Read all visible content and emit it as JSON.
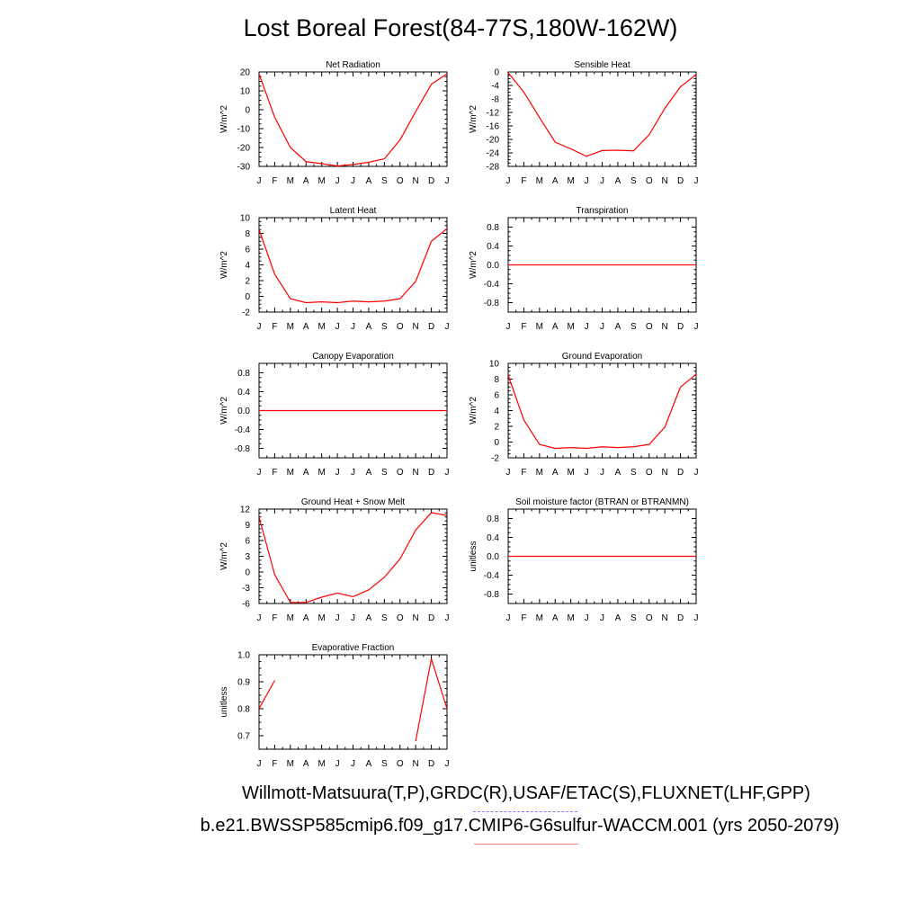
{
  "title": "Lost Boreal Forest(84-77S,180W-162W)",
  "footer": {
    "obs_line": "Willmott-Matsuura(T,P),GRDC(R),USAF/ETAC(S),FLUXNET(LHF,GPP)",
    "case_line": "b.e21.BWSSP585cmip6.f09_g17.CMIP6-G6sulfur-WACCM.001 (yrs 2050-2079)"
  },
  "colors": {
    "series": "#ff0000",
    "obs_dash": "#8080ff",
    "case_underline": "#ff8080"
  },
  "chart_data": [
    {
      "type": "line",
      "title": "Net Radiation",
      "ylabel": "W/m^2",
      "categories": [
        "J",
        "F",
        "M",
        "A",
        "M",
        "J",
        "J",
        "A",
        "S",
        "O",
        "N",
        "D",
        "J"
      ],
      "ylim": [
        -30,
        20
      ],
      "yticks": [
        -30,
        -20,
        -10,
        0,
        10,
        20
      ],
      "ytick_labels": [
        "-30",
        "-20",
        "-10",
        "0",
        "10",
        "20"
      ],
      "values": [
        19,
        -4,
        -20,
        -27.5,
        -28.5,
        -29.8,
        -29,
        -27.8,
        -26,
        -16,
        -1,
        13.5,
        19
      ]
    },
    {
      "type": "line",
      "title": "Sensible Heat",
      "ylabel": "W/m^2",
      "categories": [
        "J",
        "F",
        "M",
        "A",
        "M",
        "J",
        "J",
        "A",
        "S",
        "O",
        "N",
        "D",
        "J"
      ],
      "ylim": [
        -28,
        0
      ],
      "yticks": [
        -28,
        -24,
        -20,
        -16,
        -12,
        -8,
        -4,
        0
      ],
      "ytick_labels": [
        "-28",
        "-24",
        "-20",
        "-16",
        "-12",
        "-8",
        "-4",
        "0"
      ],
      "values": [
        -0.2,
        -6,
        -13.5,
        -20.8,
        -22.8,
        -25,
        -23.3,
        -23.2,
        -23.4,
        -18.6,
        -10.8,
        -4.4,
        -0.8
      ]
    },
    {
      "type": "line",
      "title": "Latent Heat",
      "ylabel": "W/m^2",
      "categories": [
        "J",
        "F",
        "M",
        "A",
        "M",
        "J",
        "J",
        "A",
        "S",
        "O",
        "N",
        "D",
        "J"
      ],
      "ylim": [
        -2,
        10
      ],
      "yticks": [
        -2,
        0,
        2,
        4,
        6,
        8,
        10
      ],
      "ytick_labels": [
        "-2",
        "0",
        "2",
        "4",
        "6",
        "8",
        "10"
      ],
      "values": [
        8.5,
        2.8,
        -0.3,
        -0.8,
        -0.7,
        -0.8,
        -0.6,
        -0.7,
        -0.6,
        -0.3,
        1.9,
        7,
        8.6
      ]
    },
    {
      "type": "line",
      "title": "Transpiration",
      "ylabel": "W/m^2",
      "categories": [
        "J",
        "F",
        "M",
        "A",
        "M",
        "J",
        "J",
        "A",
        "S",
        "O",
        "N",
        "D",
        "J"
      ],
      "ylim": [
        -1,
        1
      ],
      "yticks": [
        -0.8,
        -0.4,
        0,
        0.4,
        0.8
      ],
      "ytick_labels": [
        "-0.8",
        "-0.4",
        "0.0",
        "0.4",
        "0.8"
      ],
      "values": [
        0,
        0,
        0,
        0,
        0,
        0,
        0,
        0,
        0,
        0,
        0,
        0,
        0
      ]
    },
    {
      "type": "line",
      "title": "Canopy Evaporation",
      "ylabel": "W/m^2",
      "categories": [
        "J",
        "F",
        "M",
        "A",
        "M",
        "J",
        "J",
        "A",
        "S",
        "O",
        "N",
        "D",
        "J"
      ],
      "ylim": [
        -1,
        1
      ],
      "yticks": [
        -0.8,
        -0.4,
        0,
        0.4,
        0.8
      ],
      "ytick_labels": [
        "-0.8",
        "-0.4",
        "0.0",
        "0.4",
        "0.8"
      ],
      "values": [
        0,
        0,
        0,
        0,
        0,
        0,
        0,
        0,
        0,
        0,
        0,
        0,
        0
      ]
    },
    {
      "type": "line",
      "title": "Ground Evaporation",
      "ylabel": "W/m^2",
      "categories": [
        "J",
        "F",
        "M",
        "A",
        "M",
        "J",
        "J",
        "A",
        "S",
        "O",
        "N",
        "D",
        "J"
      ],
      "ylim": [
        -2,
        10
      ],
      "yticks": [
        -2,
        0,
        2,
        4,
        6,
        8,
        10
      ],
      "ytick_labels": [
        "-2",
        "0",
        "2",
        "4",
        "6",
        "8",
        "10"
      ],
      "values": [
        8.5,
        2.8,
        -0.3,
        -0.8,
        -0.7,
        -0.8,
        -0.6,
        -0.7,
        -0.6,
        -0.3,
        1.9,
        7,
        8.6
      ]
    },
    {
      "type": "line",
      "title": "Ground Heat + Snow Melt",
      "ylabel": "W/m^2",
      "categories": [
        "J",
        "F",
        "M",
        "A",
        "M",
        "J",
        "J",
        "A",
        "S",
        "O",
        "N",
        "D",
        "J"
      ],
      "ylim": [
        -6,
        12
      ],
      "yticks": [
        -6,
        -3,
        0,
        3,
        6,
        9,
        12
      ],
      "ytick_labels": [
        "-6",
        "-3",
        "0",
        "3",
        "6",
        "9",
        "12"
      ],
      "values": [
        10.5,
        -0.5,
        -5.8,
        -5.8,
        -4.8,
        -4,
        -4.7,
        -3.4,
        -1,
        2.5,
        8,
        11.3,
        10.8
      ]
    },
    {
      "type": "line",
      "title": "Soil moisture factor (BTRAN or BTRANMN)",
      "ylabel": "unitless",
      "categories": [
        "J",
        "F",
        "M",
        "A",
        "M",
        "J",
        "J",
        "A",
        "S",
        "O",
        "N",
        "D",
        "J"
      ],
      "ylim": [
        -1,
        1
      ],
      "yticks": [
        -0.8,
        -0.4,
        0,
        0.4,
        0.8
      ],
      "ytick_labels": [
        "-0.8",
        "-0.4",
        "0.0",
        "0.4",
        "0.8"
      ],
      "values": [
        0,
        0,
        0,
        0,
        0,
        0,
        0,
        0,
        0,
        0,
        0,
        0,
        0
      ]
    },
    {
      "type": "line",
      "title": "Evaporative Fraction",
      "ylabel": "unitless",
      "categories": [
        "J",
        "F",
        "M",
        "A",
        "M",
        "J",
        "J",
        "A",
        "S",
        "O",
        "N",
        "D",
        "J"
      ],
      "ylim": [
        0.65,
        1.0
      ],
      "yticks": [
        0.7,
        0.8,
        0.9,
        1.0
      ],
      "ytick_labels": [
        "0.7",
        "0.8",
        "0.9",
        "1.0"
      ],
      "values": [
        0.8,
        0.905,
        null,
        null,
        null,
        null,
        null,
        null,
        null,
        null,
        0.68,
        0.985,
        0.8
      ]
    }
  ]
}
